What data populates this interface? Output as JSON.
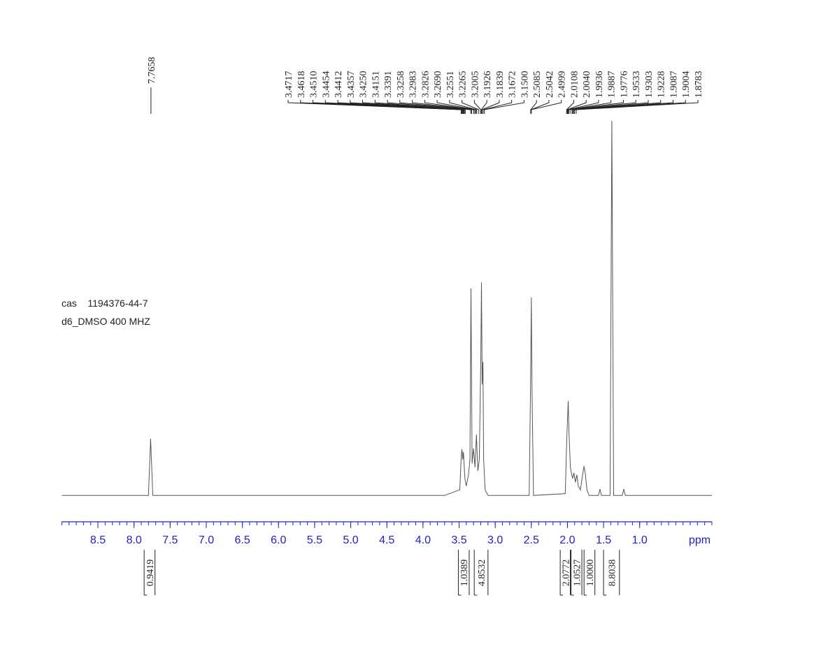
{
  "chart_data": {
    "type": "line",
    "x_label": "ppm",
    "xlim": [
      9.0,
      0.0
    ],
    "ylim": [
      0,
      100
    ],
    "xticks": [
      8.5,
      {
        "value": 8,
        "label": "8.0"
      },
      7.5,
      {
        "value": 7,
        "label": "7.0"
      },
      6.5,
      {
        "value": 6,
        "label": "6.0"
      },
      5.5,
      {
        "value": 5,
        "label": "5.0"
      },
      4.5,
      {
        "value": 4,
        "label": "4.0"
      },
      3.5,
      {
        "value": 3,
        "label": "3.0"
      },
      2.5,
      {
        "value": 2,
        "label": "2.0"
      },
      1.5,
      {
        "value": 1,
        "label": "1.0"
      }
    ],
    "axis_color": "#2020c8",
    "color": "#555555",
    "x": [
      9.0,
      7.8,
      7.77,
      7.74,
      3.7,
      3.49,
      3.47,
      3.46,
      3.45,
      3.44,
      3.42,
      3.4,
      3.37,
      3.35,
      3.335,
      3.32,
      3.3,
      3.28,
      3.26,
      3.24,
      3.22,
      3.2,
      3.19,
      3.18,
      3.17,
      3.16,
      3.14,
      3.1,
      2.53,
      2.51,
      2.5,
      2.49,
      2.47,
      2.03,
      2.01,
      1.99,
      1.98,
      1.96,
      1.93,
      1.91,
      1.89,
      1.87,
      1.85,
      1.82,
      1.79,
      1.77,
      1.75,
      1.73,
      1.7,
      1.57,
      1.55,
      1.53,
      1.41,
      1.385,
      1.36,
      1.24,
      1.22,
      1.2,
      0.0
    ],
    "values": [
      0.5,
      0.5,
      15.6,
      0.5,
      0.5,
      2,
      11,
      12.8,
      10,
      12,
      5,
      3,
      6,
      10,
      55.5,
      9,
      13,
      8,
      16.7,
      7,
      10,
      36,
      57.1,
      30,
      36,
      10,
      2,
      0.5,
      0.5,
      30,
      53.1,
      28,
      0.5,
      1,
      15,
      25.6,
      18,
      8,
      5,
      6.5,
      4,
      6,
      3,
      2,
      6,
      8.3,
      6,
      2,
      0.5,
      0.5,
      2.2,
      0.5,
      0.5,
      100,
      0.5,
      0.5,
      2.2,
      0.5,
      0.5
    ],
    "peaks": [
      7.7658,
      3.4717,
      3.4618,
      3.451,
      3.4454,
      3.4412,
      3.4357,
      3.425,
      3.4151,
      3.3391,
      3.3258,
      3.2983,
      3.2826,
      3.269,
      3.2551,
      3.2265,
      3.2005,
      3.1926,
      3.1839,
      3.1672,
      3.15,
      2.5085,
      2.5042,
      2.4999,
      2.0108,
      2.004,
      1.9936,
      1.9887,
      1.9776,
      1.9533,
      1.9303,
      1.9228,
      1.9087,
      1.9004,
      1.8783
    ],
    "peak_labels": [
      "7.7658",
      "3.4717",
      "3.4618",
      "3.4510",
      "3.4454",
      "3.4412",
      "3.4357",
      "3.4250",
      "3.4151",
      "3.3391",
      "3.3258",
      "3.2983",
      "3.2826",
      "3.2690",
      "3.2551",
      "3.2265",
      "3.2005",
      "3.1926",
      "3.1839",
      "3.1672",
      "3.1500",
      "2.5085",
      "2.5042",
      "2.4999",
      "2.0108",
      "2.0040",
      "1.9936",
      "1.9887",
      "1.9776",
      "1.9533",
      "1.9303",
      "1.9228",
      "1.9087",
      "1.9004",
      "1.8783"
    ],
    "integrals": {
      "values": [
        0.9419,
        1.0389,
        4.8532,
        2.0772,
        1.0527,
        1,
        8.8038
      ],
      "value_labels": [
        "0.9419",
        "1.0389",
        "4.8532",
        "2.0772",
        "1.0527",
        "1.0000",
        "8.8038"
      ],
      "ranges": [
        [
          7.86,
          7.71
        ],
        [
          3.51,
          3.36
        ],
        [
          3.29,
          3.1
        ],
        [
          2.1,
          1.96
        ],
        [
          1.95,
          1.8
        ],
        [
          1.77,
          1.62
        ],
        [
          1.5,
          1.28
        ]
      ]
    },
    "annotations": [
      "cas    1194376-44-7",
      "d6_DMSO 400 MHZ"
    ]
  }
}
